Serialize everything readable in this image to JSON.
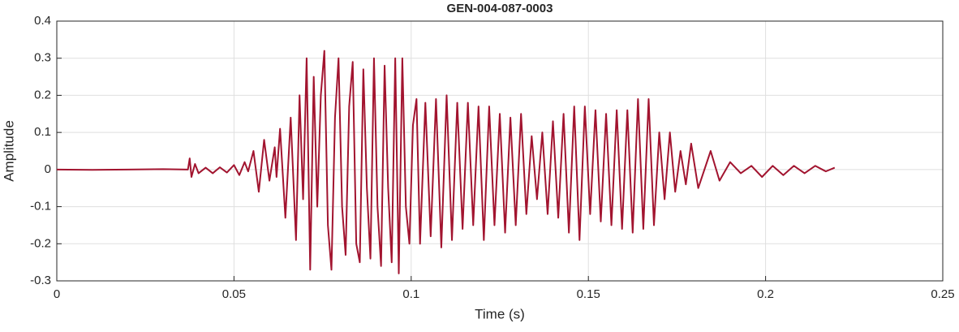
{
  "chart_data": {
    "type": "line",
    "title": "GEN-004-087-0003",
    "x_label": "Time (s)",
    "y_label": "Amplitude",
    "color": "#a2142f",
    "grid": true,
    "xlim": [
      0,
      0.25
    ],
    "xticks": [
      0,
      0.05,
      0.1,
      0.15,
      0.2,
      0.25
    ],
    "ylim": [
      -0.3,
      0.4
    ],
    "yticks": [
      -0.3,
      -0.2,
      -0.1,
      0,
      0.1,
      0.2,
      0.3,
      0.4
    ],
    "x": [
      0,
      0.01,
      0.02,
      0.03,
      0.037,
      0.0375,
      0.038,
      0.039,
      0.04,
      0.042,
      0.044,
      0.046,
      0.048,
      0.05,
      0.0515,
      0.053,
      0.054,
      0.0555,
      0.057,
      0.0585,
      0.06,
      0.0615,
      0.062,
      0.063,
      0.0645,
      0.066,
      0.0675,
      0.0685,
      0.0695,
      0.0705,
      0.0715,
      0.0725,
      0.0735,
      0.0745,
      0.0755,
      0.0765,
      0.0775,
      0.0785,
      0.0795,
      0.0805,
      0.0815,
      0.0825,
      0.0835,
      0.0845,
      0.0855,
      0.0865,
      0.0875,
      0.0885,
      0.0895,
      0.0905,
      0.0915,
      0.0925,
      0.0935,
      0.0945,
      0.0955,
      0.0965,
      0.0975,
      0.0985,
      0.0995,
      0.1005,
      0.1015,
      0.1025,
      0.104,
      0.1055,
      0.107,
      0.1085,
      0.11,
      0.1115,
      0.113,
      0.1145,
      0.116,
      0.1175,
      0.119,
      0.1205,
      0.122,
      0.1235,
      0.125,
      0.1265,
      0.128,
      0.1295,
      0.131,
      0.1325,
      0.134,
      0.1355,
      0.137,
      0.1385,
      0.14,
      0.1415,
      0.143,
      0.1445,
      0.146,
      0.1475,
      0.149,
      0.1505,
      0.152,
      0.1535,
      0.155,
      0.1565,
      0.158,
      0.1595,
      0.161,
      0.1625,
      0.164,
      0.1655,
      0.167,
      0.1685,
      0.17,
      0.1715,
      0.173,
      0.1745,
      0.176,
      0.1775,
      0.179,
      0.181,
      0.1845,
      0.187,
      0.19,
      0.193,
      0.196,
      0.199,
      0.202,
      0.205,
      0.208,
      0.211,
      0.214,
      0.217,
      0.2195
    ],
    "values": [
      0,
      -0.001,
      0,
      0.001,
      0,
      0.03,
      -0.02,
      0.015,
      -0.01,
      0.005,
      -0.01,
      0.006,
      -0.008,
      0.012,
      -0.015,
      0.02,
      -0.005,
      0.05,
      -0.06,
      0.08,
      -0.03,
      0.06,
      -0.02,
      0.11,
      -0.13,
      0.14,
      -0.19,
      0.2,
      -0.08,
      0.3,
      -0.27,
      0.25,
      -0.1,
      0.2,
      0.32,
      -0.15,
      -0.27,
      0.14,
      0.3,
      -0.1,
      -0.23,
      0.17,
      0.29,
      -0.2,
      -0.25,
      0.27,
      -0.05,
      -0.24,
      0.3,
      -0.1,
      -0.26,
      0.28,
      -0.05,
      -0.25,
      0.3,
      -0.28,
      0.3,
      -0.1,
      -0.2,
      0.12,
      0.19,
      -0.2,
      0.18,
      -0.18,
      0.19,
      -0.21,
      0.2,
      -0.19,
      0.18,
      -0.16,
      0.18,
      -0.15,
      0.17,
      -0.19,
      0.17,
      -0.15,
      0.15,
      -0.17,
      0.14,
      -0.15,
      0.15,
      -0.12,
      0.09,
      -0.08,
      0.1,
      -0.12,
      0.13,
      -0.13,
      0.15,
      -0.17,
      0.17,
      -0.19,
      0.17,
      -0.12,
      0.16,
      -0.14,
      0.15,
      -0.15,
      0.16,
      -0.16,
      0.16,
      -0.17,
      0.19,
      -0.16,
      0.19,
      -0.15,
      0.1,
      -0.08,
      0.1,
      -0.06,
      0.05,
      -0.04,
      0.07,
      -0.05,
      0.05,
      -0.03,
      0.02,
      -0.01,
      0.01,
      -0.02,
      0.01,
      -0.015,
      0.01,
      -0.01,
      0.01,
      -0.005,
      0.005
    ]
  }
}
